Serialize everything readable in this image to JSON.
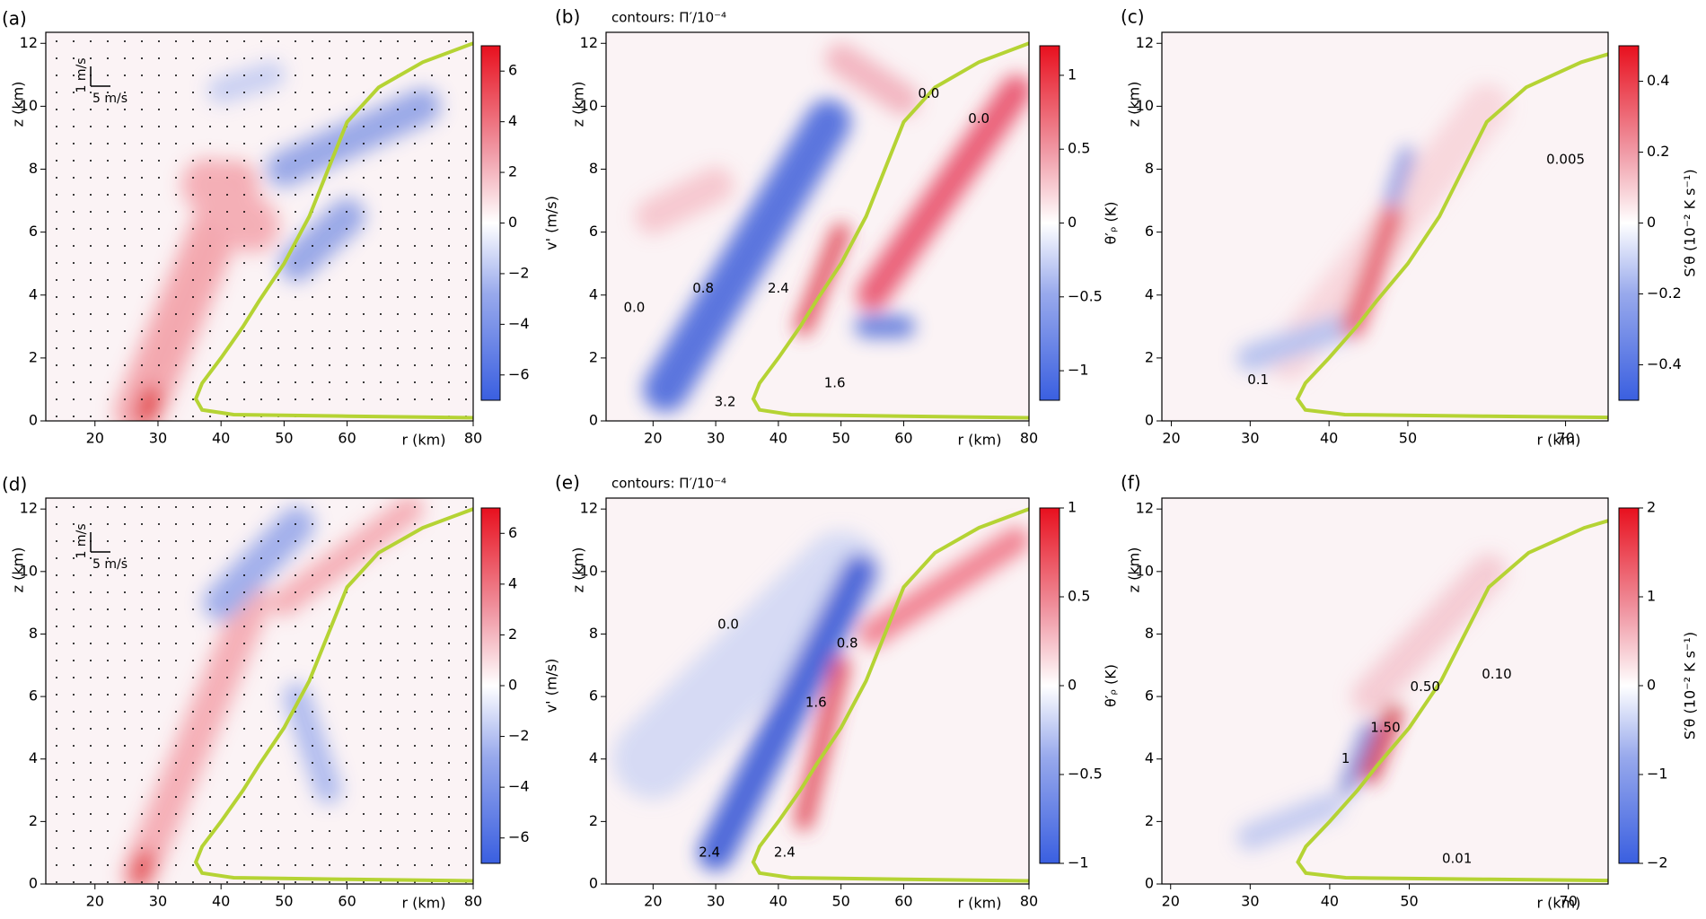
{
  "chart_data": [
    {
      "type": "contour",
      "panel": "(a)",
      "xlabel": "r (km)",
      "ylabel": "z (km)",
      "xlim": [
        12.2,
        80
      ],
      "ylim": [
        0,
        12.35
      ],
      "xticks": [
        20,
        30,
        40,
        50,
        60,
        80
      ],
      "yticks": [
        0,
        2,
        4,
        6,
        8,
        10,
        12
      ],
      "vector_key": [
        "1 m/s",
        "5 m/s"
      ],
      "colorbar": {
        "label": "v' (m/s)",
        "lim": [
          -7,
          7
        ],
        "ticks": [
          {
            "value": -6,
            "label": "−6"
          },
          {
            "value": -4,
            "label": "−4"
          },
          {
            "value": -2,
            "label": "−2"
          },
          0,
          2,
          4,
          6
        ]
      }
    },
    {
      "type": "contour",
      "panel": "(b)",
      "title": "contours: Π′/10⁻⁴",
      "xlabel": "r (km)",
      "ylabel": "z (km)",
      "xlim": [
        12.5,
        80
      ],
      "ylim": [
        0,
        12.35
      ],
      "xticks": [
        20,
        30,
        40,
        50,
        60,
        80
      ],
      "yticks": [
        0,
        2,
        4,
        6,
        8,
        10,
        12
      ],
      "contour_labels": [
        "0.0",
        "0.8",
        "2.4",
        "3.2",
        "1.6",
        "0.0",
        "0.0"
      ],
      "colorbar": {
        "label": "θ′ᵨ (K)",
        "lim": [
          -1.2,
          1.2
        ],
        "ticks": [
          {
            "value": -1,
            "label": "−1"
          },
          {
            "value": -0.5,
            "label": "−0.5"
          },
          0,
          0.5,
          1
        ]
      }
    },
    {
      "type": "contour",
      "panel": "(c)",
      "xlabel": "r (km)",
      "ylabel": "z (km)",
      "xlim": [
        18.8,
        75.4
      ],
      "ylim": [
        0,
        12.35
      ],
      "xticks": [
        20,
        30,
        40,
        50,
        70
      ],
      "yticks": [
        0,
        2,
        4,
        6,
        8,
        10,
        12
      ],
      "contour_labels": [
        "0.1",
        "0.005"
      ],
      "colorbar": {
        "label": "S′θ (10⁻² K s⁻¹)",
        "lim": [
          -0.5,
          0.5
        ],
        "ticks": [
          {
            "value": -0.4,
            "label": "−0.4"
          },
          {
            "value": -0.2,
            "label": "−0.2"
          },
          0,
          0.2,
          0.4
        ]
      }
    },
    {
      "type": "contour",
      "panel": "(d)",
      "xlabel": "r (km)",
      "ylabel": "z (km)",
      "xlim": [
        12.2,
        80
      ],
      "ylim": [
        0,
        12.35
      ],
      "xticks": [
        20,
        30,
        40,
        50,
        60,
        80
      ],
      "yticks": [
        0,
        2,
        4,
        6,
        8,
        10,
        12
      ],
      "vector_key": [
        "1 m/s",
        "5 m/s"
      ],
      "colorbar": {
        "label": "v' (m/s)",
        "lim": [
          -7,
          7
        ],
        "ticks": [
          {
            "value": -6,
            "label": "−6"
          },
          {
            "value": -4,
            "label": "−4"
          },
          {
            "value": -2,
            "label": "−2"
          },
          0,
          2,
          4,
          6
        ]
      }
    },
    {
      "type": "contour",
      "panel": "(e)",
      "title": "contours: Π′/10⁻⁴",
      "xlabel": "r (km)",
      "ylabel": "z (km)",
      "xlim": [
        12.5,
        80
      ],
      "ylim": [
        0,
        12.35
      ],
      "xticks": [
        20,
        30,
        40,
        50,
        60,
        80
      ],
      "yticks": [
        0,
        2,
        4,
        6,
        8,
        10,
        12
      ],
      "contour_labels": [
        "0.0",
        "0.8",
        "1.6",
        "2.4",
        "2.4"
      ],
      "colorbar": {
        "label": "θ′ᵨ (K)",
        "lim": [
          -1,
          1
        ],
        "ticks": [
          {
            "value": -1,
            "label": "−1"
          },
          {
            "value": -0.5,
            "label": "−0.5"
          },
          0,
          0.5,
          1
        ]
      }
    },
    {
      "type": "contour",
      "panel": "(f)",
      "xlabel": "r (km)",
      "ylabel": "z (km)",
      "xlim": [
        18.9,
        75
      ],
      "ylim": [
        0,
        12.35
      ],
      "xticks": [
        20,
        30,
        40,
        50,
        70
      ],
      "yticks": [
        0,
        2,
        4,
        6,
        8,
        10,
        12
      ],
      "contour_labels": [
        "1.50",
        "0.50",
        "0.10",
        "0.01",
        "1"
      ],
      "colorbar": {
        "label": "S′θ (10⁻² K s⁻¹)",
        "lim": [
          -2,
          2
        ],
        "ticks": [
          {
            "value": -2,
            "label": "−2"
          },
          {
            "value": -1,
            "label": "−1"
          },
          0,
          1,
          2
        ]
      }
    }
  ]
}
